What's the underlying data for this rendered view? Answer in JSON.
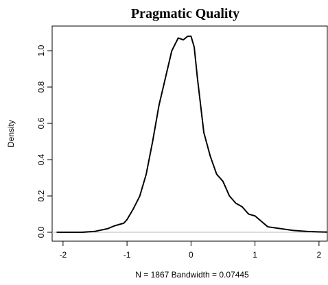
{
  "chart_data": {
    "type": "line",
    "title": "Pragmatic Quality",
    "y_label": "Density",
    "x_label": "N = 1867   Bandwidth = 0.07445",
    "x": [
      -2.1,
      -1.7,
      -1.5,
      -1.3,
      -1.2,
      -1.05,
      -1.0,
      -0.9,
      -0.8,
      -0.7,
      -0.6,
      -0.5,
      -0.4,
      -0.3,
      -0.2,
      -0.12,
      -0.05,
      0.0,
      0.05,
      0.1,
      0.2,
      0.3,
      0.4,
      0.5,
      0.6,
      0.7,
      0.8,
      0.9,
      1.0,
      1.1,
      1.2,
      1.4,
      1.6,
      1.8,
      2.0,
      2.13
    ],
    "series": [
      {
        "name": "density",
        "color": "#000000",
        "values": [
          0.0,
          0.0,
          0.005,
          0.02,
          0.035,
          0.05,
          0.07,
          0.13,
          0.2,
          0.32,
          0.5,
          0.7,
          0.85,
          1.0,
          1.07,
          1.06,
          1.08,
          1.08,
          1.02,
          0.85,
          0.55,
          0.42,
          0.32,
          0.28,
          0.2,
          0.16,
          0.14,
          0.1,
          0.09,
          0.06,
          0.03,
          0.02,
          0.01,
          0.005,
          0.002,
          0.001
        ]
      }
    ],
    "xlim": [
      -2.17,
      2.13
    ],
    "xticks": [
      -2,
      -1,
      0,
      1,
      2
    ],
    "ylim": [
      -0.049,
      1.136
    ],
    "yticks": [
      {
        "value": 0,
        "label": "0.0"
      },
      {
        "value": 0.2,
        "label": "0.2"
      },
      {
        "value": 0.4,
        "label": "0.4"
      },
      {
        "value": 0.6,
        "label": "0.6"
      },
      {
        "value": 0.8,
        "label": "0.8"
      },
      {
        "value": 1,
        "label": "1.0"
      }
    ]
  }
}
